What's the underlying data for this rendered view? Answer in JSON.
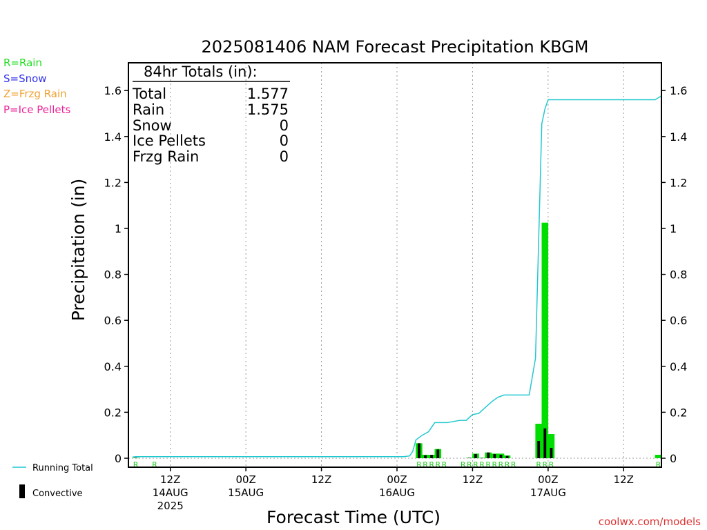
{
  "chart_data": {
    "type": "bar",
    "title": "2025081406 NAM Forecast Precipitation KBGM",
    "xlabel": "Forecast Time (UTC)",
    "ylabel": "Precipitation (in)",
    "ylim": [
      0,
      1.72
    ],
    "xlim_hours_from_init": [
      0,
      84
    ],
    "y_ticks": [
      {
        "value": 0,
        "label": "0"
      },
      {
        "value": 0.2,
        "label": "0.2"
      },
      {
        "value": 0.4,
        "label": "0.4"
      },
      {
        "value": 0.6,
        "label": "0.6"
      },
      {
        "value": 0.8,
        "label": "0.8"
      },
      {
        "value": 1.0,
        "label": "1"
      },
      {
        "value": 1.2,
        "label": "1.2"
      },
      {
        "value": 1.4,
        "label": "1.4"
      },
      {
        "value": 1.6,
        "label": "1.6"
      }
    ],
    "x_ticks": [
      {
        "hour": 6,
        "label": "12Z",
        "date": "14AUG",
        "year": "2025"
      },
      {
        "hour": 18,
        "label": "00Z",
        "date": "15AUG",
        "year": ""
      },
      {
        "hour": 30,
        "label": "12Z",
        "date": "",
        "year": ""
      },
      {
        "hour": 42,
        "label": "00Z",
        "date": "16AUG",
        "year": ""
      },
      {
        "hour": 54,
        "label": "12Z",
        "date": "",
        "year": ""
      },
      {
        "hour": 66,
        "label": "00Z",
        "date": "17AUG",
        "year": ""
      },
      {
        "hour": 78,
        "label": "12Z",
        "date": "",
        "year": ""
      }
    ],
    "grid": true,
    "legend_types": [
      {
        "text": "R=Rain",
        "color": "#22dd22"
      },
      {
        "text": "S=Snow",
        "color": "#3333ee"
      },
      {
        "text": "Z=Frzg Rain",
        "color": "#f0a030"
      },
      {
        "text": "P=Ice Pellets",
        "color": "#ee2299"
      }
    ],
    "legend_lines": {
      "running_total": "Running Total",
      "convective": "Convective"
    },
    "totals": {
      "header": "84hr Totals (in):",
      "rows": [
        {
          "label": "Total",
          "value": "1.577"
        },
        {
          "label": "Rain",
          "value": "1.575"
        },
        {
          "label": "Snow",
          "value": "0"
        },
        {
          "label": "Ice Pellets",
          "value": "0"
        },
        {
          "label": "Frzg Rain",
          "value": "0"
        }
      ]
    },
    "series": [
      {
        "name": "Precipitation",
        "hours": [
          0.5,
          45.5,
          46.5,
          47.5,
          48.5,
          53.5,
          54.5,
          55.5,
          56.5,
          57.5,
          58.5,
          59.5,
          64.5,
          65.5,
          66.5,
          83.5
        ],
        "values": [
          0.002,
          0.065,
          0.015,
          0.015,
          0.04,
          0.002,
          0.02,
          0.002,
          0.025,
          0.02,
          0.02,
          0.012,
          0.15,
          1.025,
          0.105,
          0.015
        ],
        "convective": [
          0.002,
          0.065,
          0.013,
          0.015,
          0.038,
          0.002,
          0.018,
          0.001,
          0.025,
          0.018,
          0.015,
          0.01,
          0.075,
          0.13,
          0.045,
          0.0
        ]
      },
      {
        "name": "Running Total",
        "x_hours": [
          0,
          0.5,
          43,
          44,
          44.5,
          45,
          46,
          47,
          48,
          49,
          50,
          51,
          52,
          53,
          54,
          55,
          56,
          57,
          58,
          59,
          60,
          61,
          62,
          63,
          64,
          65,
          65.5,
          66,
          67,
          68,
          69,
          70,
          71,
          72,
          73,
          74,
          75,
          76,
          77,
          78,
          79,
          80,
          81,
          82,
          83,
          84
        ],
        "values": [
          0.005,
          0.007,
          0.007,
          0.01,
          0.03,
          0.08,
          0.1,
          0.115,
          0.155,
          0.155,
          0.155,
          0.16,
          0.165,
          0.165,
          0.19,
          0.195,
          0.22,
          0.245,
          0.265,
          0.275,
          0.275,
          0.275,
          0.275,
          0.275,
          0.435,
          1.455,
          1.52,
          1.56,
          1.56,
          1.56,
          1.56,
          1.56,
          1.56,
          1.56,
          1.56,
          1.56,
          1.56,
          1.56,
          1.56,
          1.56,
          1.56,
          1.56,
          1.56,
          1.56,
          1.56,
          1.577
        ]
      }
    ],
    "ptype_codes": [
      {
        "hour": 0.5,
        "code": "R"
      },
      {
        "hour": 3.5,
        "code": "R"
      },
      {
        "hour": 45.5,
        "code": "R"
      },
      {
        "hour": 46.5,
        "code": "R"
      },
      {
        "hour": 47.5,
        "code": "R"
      },
      {
        "hour": 48.5,
        "code": "R"
      },
      {
        "hour": 49.5,
        "code": "R"
      },
      {
        "hour": 52.5,
        "code": "R"
      },
      {
        "hour": 53.5,
        "code": "R"
      },
      {
        "hour": 54.5,
        "code": "R"
      },
      {
        "hour": 55.5,
        "code": "R"
      },
      {
        "hour": 56.5,
        "code": "R"
      },
      {
        "hour": 57.5,
        "code": "R"
      },
      {
        "hour": 58.5,
        "code": "R"
      },
      {
        "hour": 59.5,
        "code": "R"
      },
      {
        "hour": 60.5,
        "code": "R"
      },
      {
        "hour": 64.5,
        "code": "R"
      },
      {
        "hour": 65.5,
        "code": "R"
      },
      {
        "hour": 66.5,
        "code": "R"
      },
      {
        "hour": 83.5,
        "code": "R"
      }
    ],
    "colors": {
      "rain_bar": "#00dd00",
      "convective_bar": "#000000",
      "running_total": "#22c8d0",
      "ptype_code": "#22cc22",
      "credit": "#e03030"
    },
    "credit": "coolwx.com/models"
  }
}
